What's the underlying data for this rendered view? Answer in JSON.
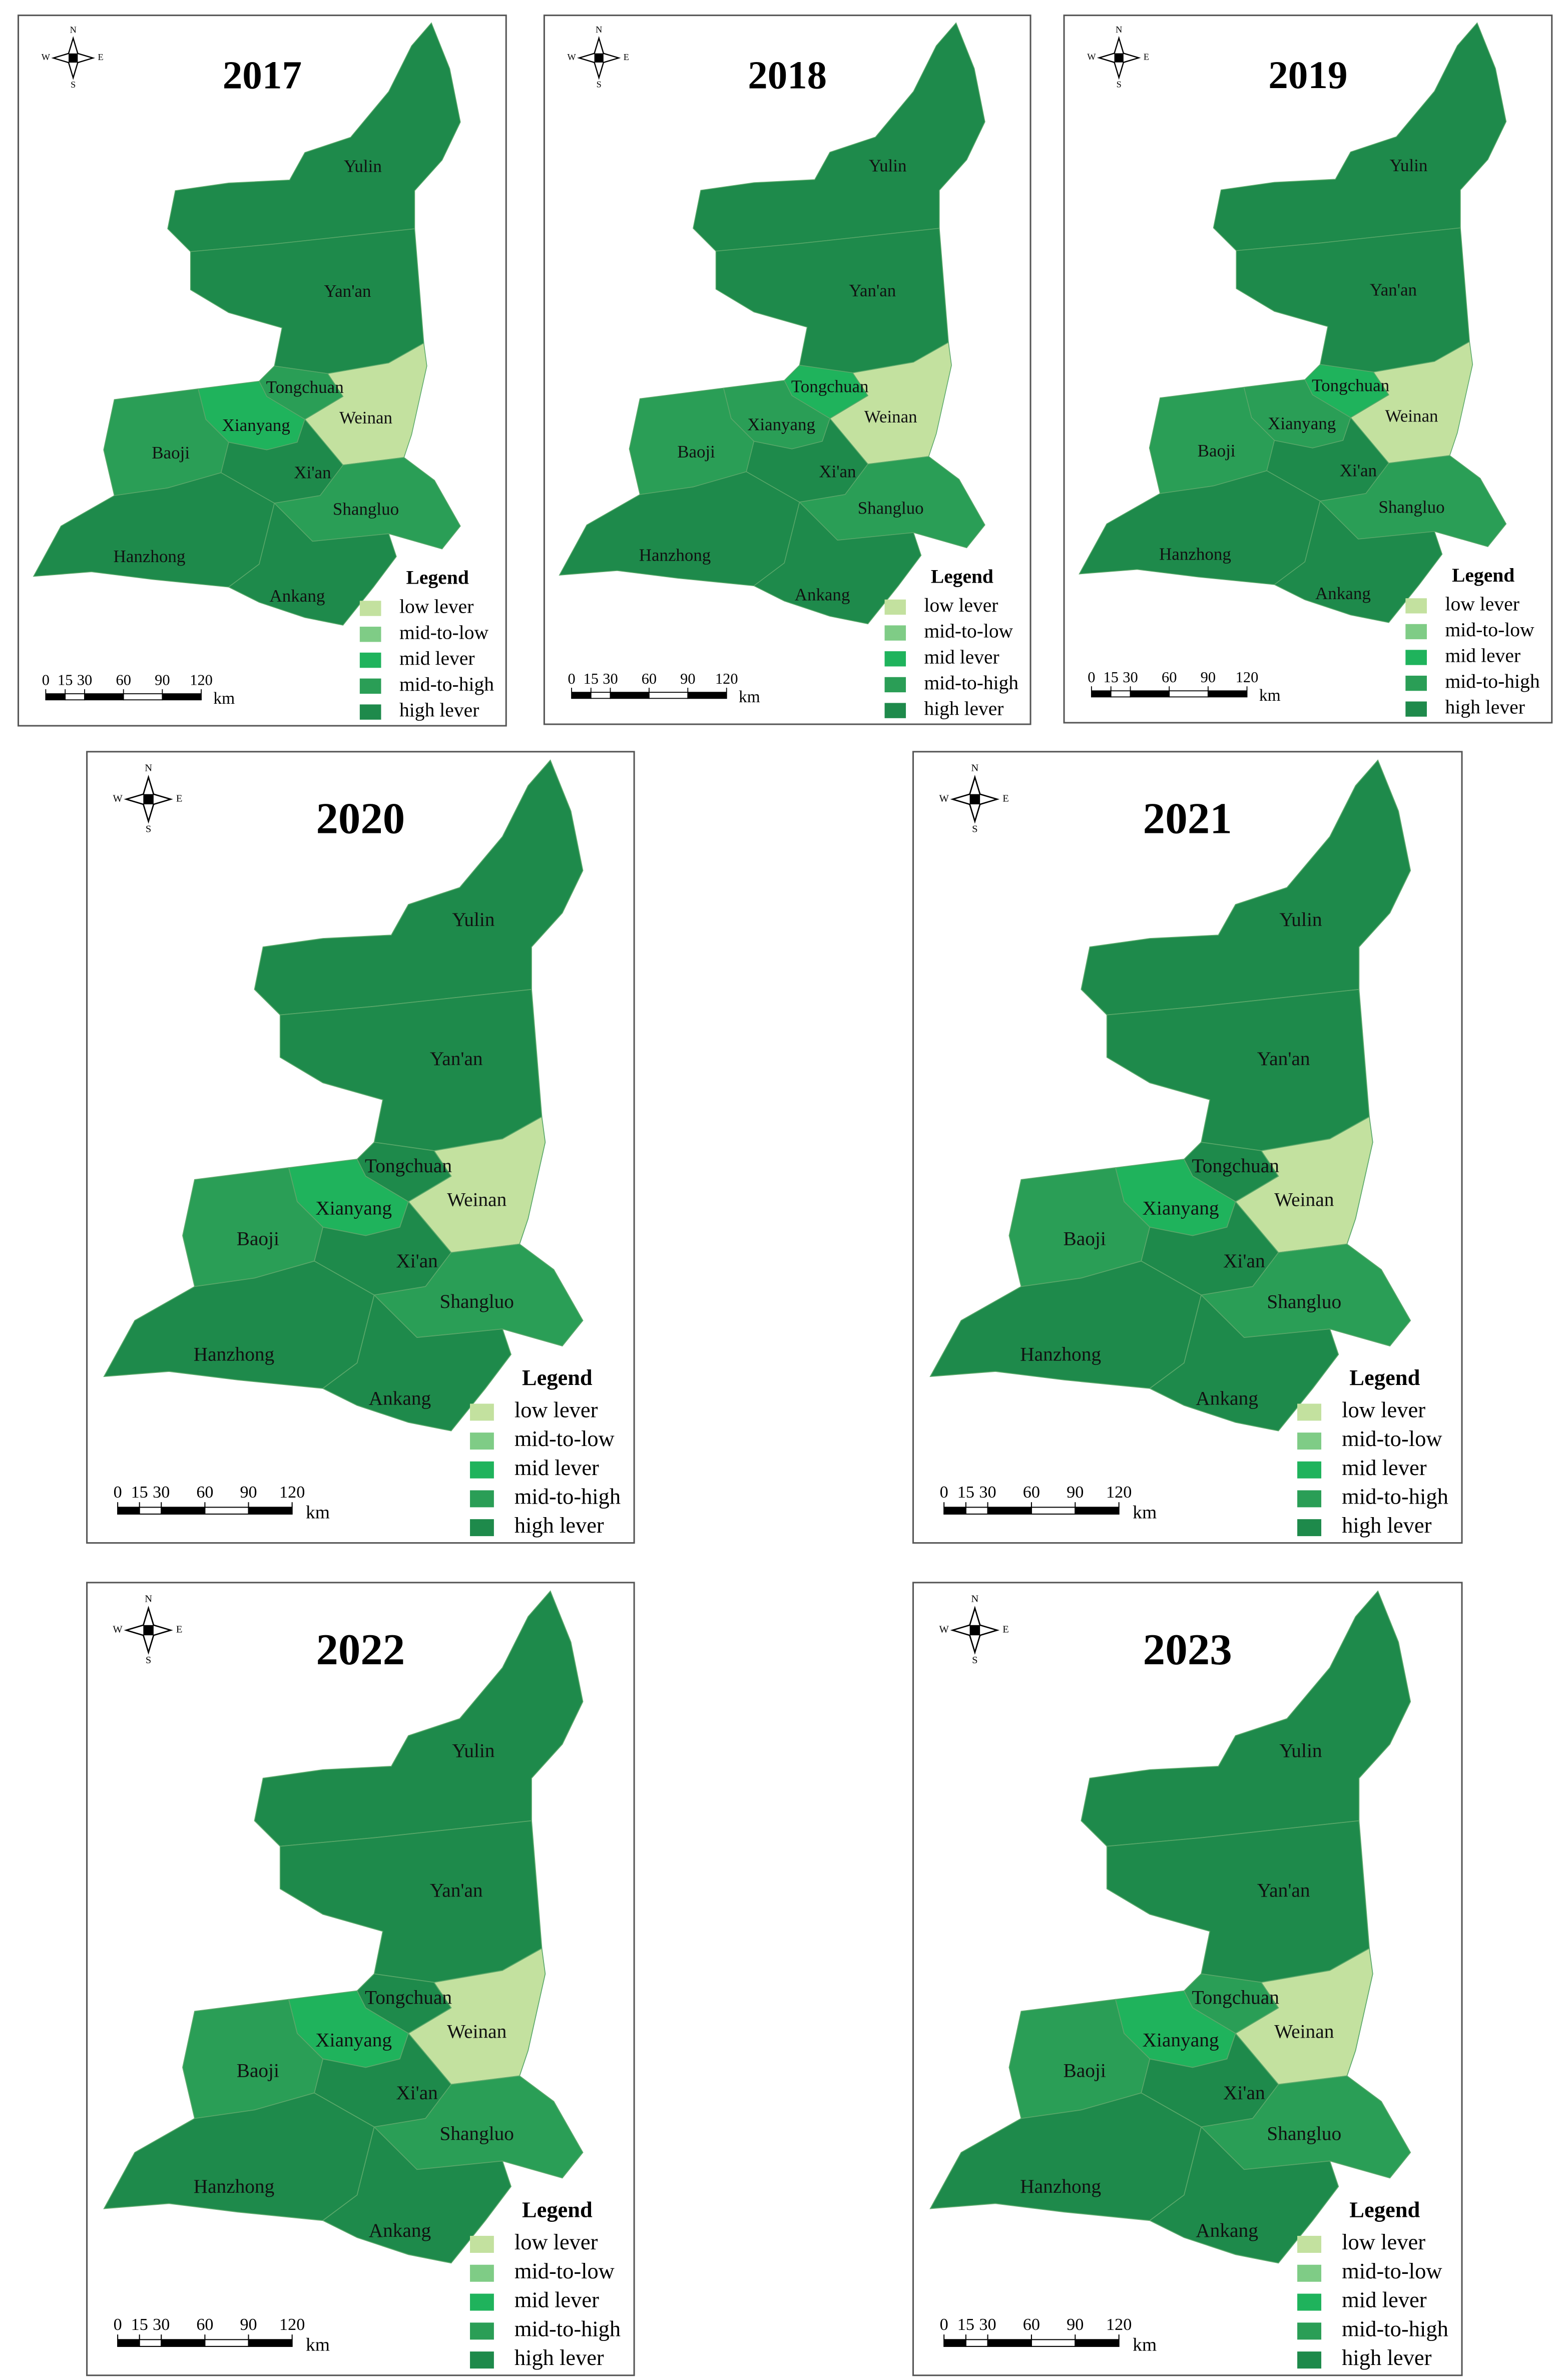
{
  "compass": {
    "north": "N",
    "south": "S",
    "east": "E",
    "west": "W"
  },
  "scale_bar": {
    "ticks": [
      0,
      15,
      30,
      60,
      90,
      120
    ],
    "unit": "km"
  },
  "legend": {
    "title": "Legend",
    "items": [
      {
        "label": "low lever",
        "color": "#c3e19f"
      },
      {
        "label": "mid-to-low",
        "color": "#7fcc86"
      },
      {
        "label": "mid lever",
        "color": "#1fb35c"
      },
      {
        "label": "mid-to-high",
        "color": "#2a9e56"
      },
      {
        "label": "high lever",
        "color": "#1e8a4b"
      }
    ]
  },
  "regions": [
    "Yulin",
    "Yan'an",
    "Tongchuan",
    "Weinan",
    "Xianyang",
    "Baoji",
    "Xi'an",
    "Shangluo",
    "Hanzhong",
    "Ankang"
  ],
  "panels": [
    {
      "year": "2017",
      "levels": [
        "high lever",
        "high lever",
        "mid-to-high",
        "low lever",
        "mid lever",
        "mid-to-high",
        "high lever",
        "mid-to-high",
        "high lever",
        "high lever"
      ]
    },
    {
      "year": "2018",
      "levels": [
        "high lever",
        "high lever",
        "mid lever",
        "low lever",
        "mid-to-high",
        "mid-to-high",
        "high lever",
        "mid-to-high",
        "high lever",
        "high lever"
      ]
    },
    {
      "year": "2019",
      "levels": [
        "high lever",
        "high lever",
        "mid lever",
        "low lever",
        "mid-to-high",
        "mid-to-high",
        "high lever",
        "mid-to-high",
        "high lever",
        "high lever"
      ]
    },
    {
      "year": "2020",
      "levels": [
        "high lever",
        "high lever",
        "high lever",
        "low lever",
        "mid lever",
        "mid-to-high",
        "high lever",
        "mid-to-high",
        "high lever",
        "high lever"
      ]
    },
    {
      "year": "2021",
      "levels": [
        "high lever",
        "high lever",
        "high lever",
        "low lever",
        "mid lever",
        "mid-to-high",
        "high lever",
        "mid-to-high",
        "high lever",
        "high lever"
      ]
    },
    {
      "year": "2022",
      "levels": [
        "high lever",
        "high lever",
        "high lever",
        "low lever",
        "mid lever",
        "mid-to-high",
        "high lever",
        "mid-to-high",
        "high lever",
        "high lever"
      ]
    },
    {
      "year": "2023",
      "levels": [
        "high lever",
        "high lever",
        "mid-to-high",
        "low lever",
        "mid lever",
        "mid-to-high",
        "high lever",
        "mid-to-high",
        "high lever",
        "high lever"
      ]
    }
  ]
}
